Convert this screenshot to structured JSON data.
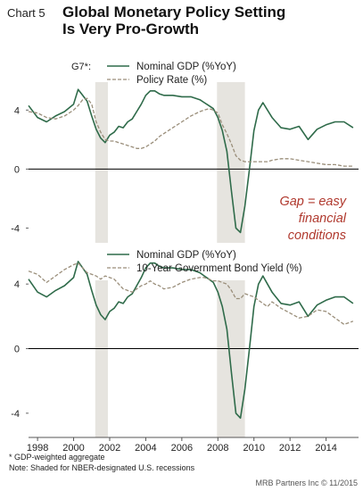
{
  "header": {
    "chart_label": "Chart 5",
    "title_line1": "Global Monetary Policy Setting",
    "title_line2": "Is Very Pro-Growth"
  },
  "footnotes": {
    "note1": "* GDP-weighted aggregate",
    "note2": "Note: Shaded for NBER-designated U.S. recessions"
  },
  "credit": "MRB Partners Inc © 11/2015",
  "colors": {
    "gdp": "#2f6b4a",
    "dashed": "#9a8e7a",
    "recession": "#e6e4df",
    "annotation": "#b0392e"
  },
  "chart_data": [
    {
      "type": "line",
      "panel": "top",
      "legend_prefix": "G7*:",
      "legend_placement": "top-left",
      "annotation": [
        "Gap = easy",
        "financial",
        "conditions"
      ],
      "ylim": [
        -5,
        6.5
      ],
      "yticks": [
        -4,
        0,
        4
      ],
      "recessions": [
        [
          2001.2,
          2001.9
        ],
        [
          2007.95,
          2009.5
        ]
      ],
      "x": [
        1997.5,
        1998.0,
        1998.5,
        1999.0,
        1999.5,
        2000.0,
        2000.25,
        2000.5,
        2000.75,
        2001.0,
        2001.25,
        2001.5,
        2001.75,
        2002.0,
        2002.25,
        2002.5,
        2002.75,
        2003.0,
        2003.25,
        2003.5,
        2003.75,
        2004.0,
        2004.25,
        2004.5,
        2004.75,
        2005.0,
        2005.5,
        2006.0,
        2006.5,
        2007.0,
        2007.25,
        2007.5,
        2007.75,
        2008.0,
        2008.25,
        2008.5,
        2008.75,
        2009.0,
        2009.25,
        2009.5,
        2009.75,
        2010.0,
        2010.25,
        2010.5,
        2010.75,
        2011.0,
        2011.5,
        2012.0,
        2012.5,
        2013.0,
        2013.5,
        2014.0,
        2014.5,
        2015.0,
        2015.5
      ],
      "series": [
        {
          "name": "Nominal GDP (%YoY)",
          "style": "solid",
          "values": [
            4.3,
            3.5,
            3.2,
            3.6,
            3.9,
            4.4,
            5.4,
            5.0,
            4.6,
            3.6,
            2.7,
            2.1,
            1.8,
            2.3,
            2.5,
            2.9,
            2.8,
            3.2,
            3.4,
            3.9,
            4.4,
            5.0,
            5.3,
            5.3,
            5.1,
            5.0,
            5.0,
            4.9,
            4.9,
            4.7,
            4.5,
            4.3,
            4.1,
            3.5,
            2.6,
            1.2,
            -1.5,
            -4.0,
            -4.3,
            -2.5,
            0.0,
            2.6,
            4.0,
            4.5,
            4.0,
            3.5,
            2.8,
            2.7,
            2.9,
            2.0,
            2.7,
            3.0,
            3.2,
            3.2,
            2.8
          ]
        },
        {
          "name": "Policy Rate (%)",
          "style": "dashed",
          "values": [
            3.9,
            3.8,
            3.5,
            3.4,
            3.6,
            4.0,
            4.3,
            4.7,
            4.8,
            4.4,
            3.2,
            2.5,
            2.0,
            1.9,
            1.9,
            1.8,
            1.7,
            1.6,
            1.5,
            1.4,
            1.4,
            1.5,
            1.7,
            1.9,
            2.2,
            2.4,
            2.8,
            3.2,
            3.6,
            3.9,
            4.0,
            4.1,
            4.0,
            3.8,
            3.0,
            2.4,
            1.7,
            0.9,
            0.6,
            0.5,
            0.5,
            0.5,
            0.5,
            0.5,
            0.5,
            0.6,
            0.7,
            0.7,
            0.6,
            0.5,
            0.4,
            0.3,
            0.3,
            0.2,
            0.2
          ]
        }
      ]
    },
    {
      "type": "line",
      "panel": "bottom",
      "legend_placement": "top-left",
      "ylim": [
        -5.5,
        6.0
      ],
      "yticks": [
        -4,
        0,
        4
      ],
      "recessions": [
        [
          2001.2,
          2001.9
        ],
        [
          2007.95,
          2009.5
        ]
      ],
      "xticks": [
        "1998",
        "2000",
        "2002",
        "2004",
        "2006",
        "2008",
        "2010",
        "2012",
        "2014"
      ],
      "xtick_values": [
        1998,
        2000,
        2002,
        2004,
        2006,
        2008,
        2010,
        2012,
        2014
      ],
      "x": [
        1997.5,
        1998.0,
        1998.5,
        1999.0,
        1999.5,
        2000.0,
        2000.25,
        2000.5,
        2000.75,
        2001.0,
        2001.25,
        2001.5,
        2001.75,
        2002.0,
        2002.25,
        2002.5,
        2002.75,
        2003.0,
        2003.25,
        2003.5,
        2003.75,
        2004.0,
        2004.25,
        2004.5,
        2004.75,
        2005.0,
        2005.5,
        2006.0,
        2006.5,
        2007.0,
        2007.25,
        2007.5,
        2007.75,
        2008.0,
        2008.25,
        2008.5,
        2008.75,
        2009.0,
        2009.25,
        2009.5,
        2009.75,
        2010.0,
        2010.25,
        2010.5,
        2010.75,
        2011.0,
        2011.5,
        2012.0,
        2012.5,
        2013.0,
        2013.5,
        2014.0,
        2014.5,
        2015.0,
        2015.5
      ],
      "series": [
        {
          "name": "Nominal GDP (%YoY)",
          "style": "solid",
          "values": [
            4.3,
            3.5,
            3.2,
            3.6,
            3.9,
            4.4,
            5.4,
            5.0,
            4.6,
            3.6,
            2.7,
            2.1,
            1.8,
            2.3,
            2.5,
            2.9,
            2.8,
            3.2,
            3.4,
            3.9,
            4.4,
            5.0,
            5.3,
            5.3,
            5.1,
            5.0,
            5.0,
            4.9,
            4.9,
            4.7,
            4.5,
            4.3,
            4.1,
            3.5,
            2.6,
            1.2,
            -1.5,
            -4.0,
            -4.3,
            -2.5,
            0.0,
            2.6,
            4.0,
            4.5,
            4.0,
            3.5,
            2.8,
            2.7,
            2.9,
            2.0,
            2.7,
            3.0,
            3.2,
            3.2,
            2.8
          ]
        },
        {
          "name": "10-Year Government Bond Yield (%)",
          "style": "dashed",
          "values": [
            4.8,
            4.6,
            4.1,
            4.5,
            4.9,
            5.2,
            5.3,
            5.0,
            4.7,
            4.6,
            4.5,
            4.3,
            4.5,
            4.4,
            4.3,
            4.0,
            3.7,
            3.6,
            3.5,
            3.7,
            3.9,
            4.0,
            4.2,
            4.0,
            3.9,
            3.7,
            3.8,
            4.1,
            4.3,
            4.4,
            4.4,
            4.3,
            4.2,
            4.2,
            4.1,
            4.0,
            3.6,
            3.1,
            3.1,
            3.4,
            3.3,
            3.2,
            3.0,
            2.8,
            2.6,
            2.9,
            2.5,
            2.2,
            1.9,
            2.0,
            2.4,
            2.3,
            1.9,
            1.5,
            1.7
          ]
        }
      ]
    }
  ]
}
